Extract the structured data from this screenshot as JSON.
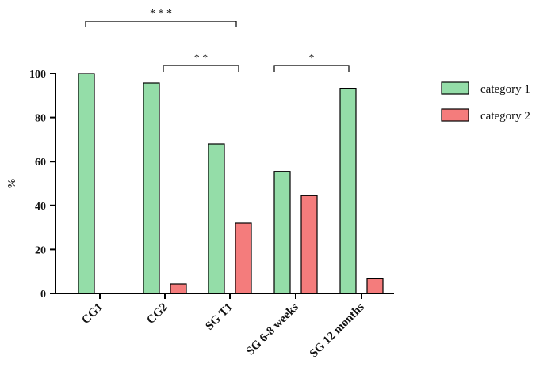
{
  "chart_data": {
    "type": "bar",
    "ylabel": "%",
    "xlabel": "",
    "ylim": [
      0,
      100
    ],
    "yticks": [
      0,
      20,
      40,
      60,
      80,
      100
    ],
    "categories": [
      "CG1",
      "CG2",
      "SG T1",
      "SG 6-8 weeks",
      "SG 12 months"
    ],
    "series": [
      {
        "name": "category 1",
        "color": "#94dda8",
        "values": [
          100,
          95.7,
          68,
          55.5,
          93.3
        ]
      },
      {
        "name": "category 2",
        "color": "#f47c7c",
        "values": [
          0,
          4.3,
          32,
          44.5,
          6.7
        ]
      }
    ],
    "legend_position": "right",
    "significance": [
      {
        "label": "* * *",
        "from_category": 0,
        "to_category": 2
      },
      {
        "label": "* *",
        "from_category": 1,
        "to_category": 2
      },
      {
        "label": "*",
        "from_category": 3,
        "to_category": 4
      }
    ]
  }
}
